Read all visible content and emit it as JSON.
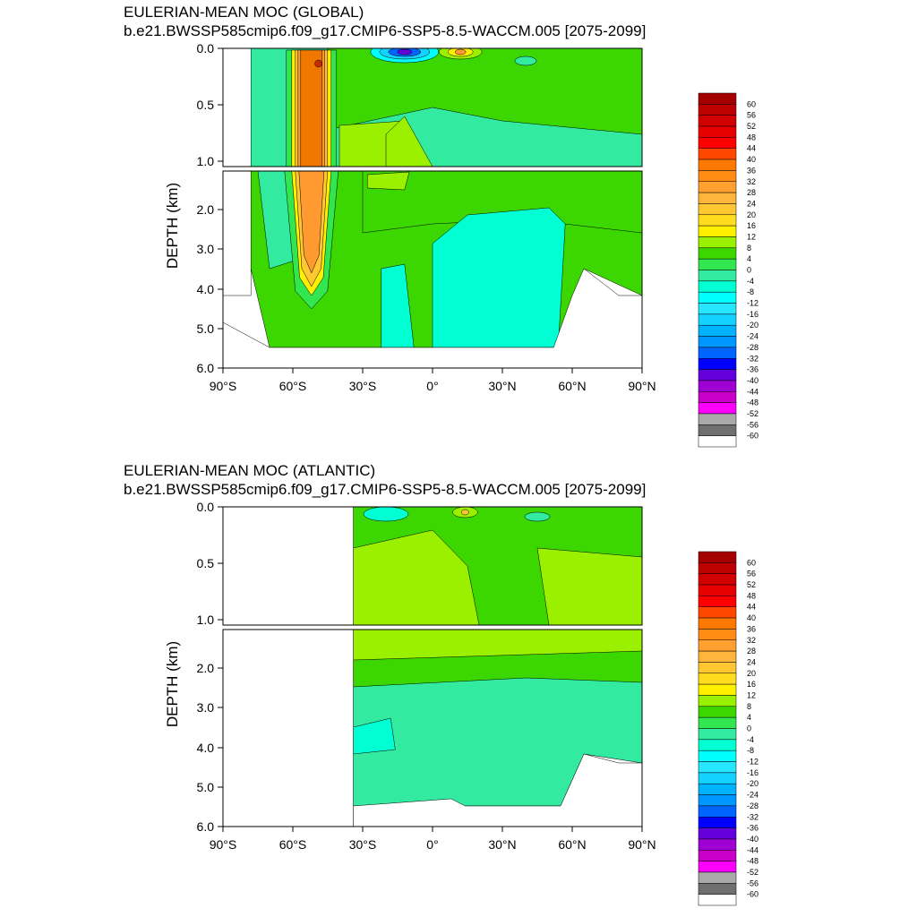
{
  "chart_data": [
    {
      "type": "heatmap",
      "panel": "global",
      "title": "EULERIAN-MEAN MOC (GLOBAL)",
      "subtitle": "b.e21.BWSSP585cmip6.f09_g17.CMIP6-SSP5-8.5-WACCM.005 [2075-2099]",
      "ylabel": "DEPTH (km)",
      "xlabel": "",
      "x_ticks": [
        "90°S",
        "60°S",
        "30°S",
        "0°",
        "30°N",
        "60°N",
        "90°N"
      ],
      "x_tick_values": [
        -90,
        -60,
        -30,
        0,
        30,
        60,
        90
      ],
      "y_ticks_upper": [
        "0.0",
        "0.5",
        "1.0"
      ],
      "y_ticks_lower": [
        "2.0",
        "3.0",
        "4.0",
        "5.0",
        "6.0"
      ],
      "xlim": [
        -90,
        90
      ],
      "ylim": [
        6.0,
        0.0
      ],
      "upper_depth_range_km": [
        0.0,
        1.0
      ],
      "lower_depth_range_km": [
        1.0,
        6.0
      ],
      "colorbar_levels": [
        "60",
        "56",
        "52",
        "48",
        "44",
        "40",
        "36",
        "32",
        "28",
        "24",
        "20",
        "16",
        "12",
        "8",
        "4",
        "0",
        "-4",
        "-8",
        "-12",
        "-16",
        "-20",
        "-24",
        "-28",
        "-32",
        "-36",
        "-40",
        "-44",
        "-48",
        "-52",
        "-56",
        "-60"
      ],
      "features": [
        {
          "lat": -50,
          "depth_km": 0.1,
          "value": 44,
          "kind": "max"
        },
        {
          "lat": -50,
          "depth_km": 2.5,
          "value": 28,
          "kind": "cell"
        },
        {
          "lat": -13,
          "depth_km": 0.02,
          "value": -40,
          "kind": "min"
        },
        {
          "lat": 12,
          "depth_km": 0.03,
          "value": 14,
          "kind": "max"
        },
        {
          "lat": 10,
          "depth_km": 3.5,
          "value": -4,
          "kind": "cell"
        }
      ]
    },
    {
      "type": "heatmap",
      "panel": "atlantic",
      "title": "EULERIAN-MEAN MOC (ATLANTIC)",
      "subtitle": "b.e21.BWSSP585cmip6.f09_g17.CMIP6-SSP5-8.5-WACCM.005 [2075-2099]",
      "ylabel": "DEPTH (km)",
      "xlabel": "",
      "x_ticks": [
        "90°S",
        "60°S",
        "30°S",
        "0°",
        "30°N",
        "60°N",
        "90°N"
      ],
      "x_tick_values": [
        -90,
        -60,
        -30,
        0,
        30,
        60,
        90
      ],
      "y_ticks_upper": [
        "0.0",
        "0.5",
        "1.0"
      ],
      "y_ticks_lower": [
        "2.0",
        "3.0",
        "4.0",
        "5.0",
        "6.0"
      ],
      "xlim": [
        -90,
        90
      ],
      "ylim": [
        6.0,
        0.0
      ],
      "upper_depth_range_km": [
        0.0,
        1.0
      ],
      "lower_depth_range_km": [
        1.0,
        6.0
      ],
      "colorbar_levels": [
        "60",
        "56",
        "52",
        "48",
        "44",
        "40",
        "36",
        "32",
        "28",
        "24",
        "20",
        "16",
        "12",
        "8",
        "4",
        "0",
        "-4",
        "-8",
        "-12",
        "-16",
        "-20",
        "-24",
        "-28",
        "-32",
        "-36",
        "-40",
        "-44",
        "-48",
        "-52",
        "-56",
        "-60"
      ],
      "features": [
        {
          "lat": 12,
          "depth_km": 0.05,
          "value": 12,
          "kind": "max"
        },
        {
          "lat": -20,
          "depth_km": 0.5,
          "value": 8,
          "kind": "cell"
        },
        {
          "lat": 10,
          "depth_km": 3.5,
          "value": -4,
          "kind": "cell"
        },
        {
          "lat": -25,
          "depth_km": 3.8,
          "value": -8,
          "kind": "min"
        }
      ]
    }
  ],
  "colorbar_colors": [
    "#a50000",
    "#be0000",
    "#d20000",
    "#e60000",
    "#ff0000",
    "#ff4700",
    "#ff7800",
    "#ff8c14",
    "#ffa030",
    "#ffb43c",
    "#ffc832",
    "#ffdc1e",
    "#fff000",
    "#9bf000",
    "#3cd700",
    "#32e650",
    "#32eba0",
    "#00ffd2",
    "#00ffff",
    "#28e6ff",
    "#14d2ff",
    "#00b4ff",
    "#0096ff",
    "#0064ff",
    "#0000ff",
    "#6400dc",
    "#a000d2",
    "#c800c8",
    "#ff00ff",
    "#aaaaaa",
    "#707070",
    "#ffffff"
  ]
}
